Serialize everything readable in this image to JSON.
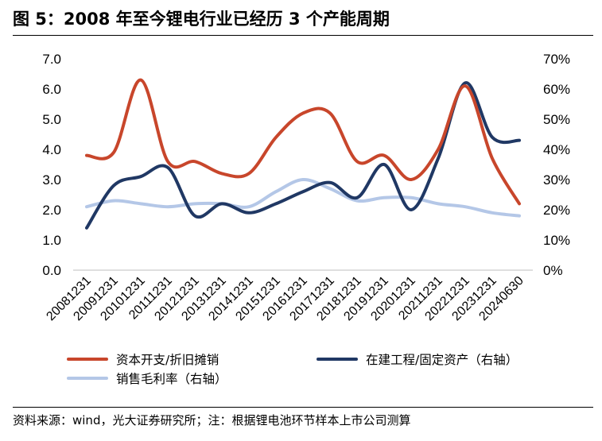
{
  "header": {
    "title": "图 5：2008 年至今锂电行业已经历 3 个产能周期"
  },
  "footer": {
    "source": "资料来源：wind，光大证券研究所；注：根据锂电池环节样本上市公司测算"
  },
  "chart_data": {
    "type": "line",
    "title": "图 5：2008 年至今锂电行业已经历 3 个产能周期",
    "categories": [
      "20081231",
      "20091231",
      "20101231",
      "20111231",
      "20121231",
      "20131231",
      "20141231",
      "20151231",
      "20161231",
      "20171231",
      "20181231",
      "20191231",
      "20201231",
      "20211231",
      "20221231",
      "20231231",
      "20240630"
    ],
    "left_axis": {
      "min": 0,
      "max": 7,
      "ticks": [
        "0.0",
        "1.0",
        "2.0",
        "3.0",
        "4.0",
        "5.0",
        "6.0",
        "7.0"
      ]
    },
    "right_axis": {
      "min": 0,
      "max": 0.7,
      "ticks": [
        "0%",
        "10%",
        "20%",
        "30%",
        "40%",
        "50%",
        "60%",
        "70%"
      ]
    },
    "grid": false,
    "legend_position": "bottom",
    "series": [
      {
        "name": "资本开支/折旧摊销",
        "axis": "left",
        "color": "#C8462B",
        "values": [
          3.8,
          3.9,
          6.3,
          3.6,
          3.6,
          3.2,
          3.2,
          4.4,
          5.2,
          5.2,
          3.6,
          3.8,
          3.0,
          4.0,
          6.1,
          3.7,
          2.2
        ]
      },
      {
        "name": "在建工程/固定资产（右轴）",
        "axis": "right",
        "color": "#203864",
        "values": [
          0.14,
          0.28,
          0.31,
          0.34,
          0.18,
          0.22,
          0.19,
          0.22,
          0.26,
          0.29,
          0.24,
          0.35,
          0.2,
          0.37,
          0.62,
          0.44,
          0.43
        ]
      },
      {
        "name": "销售毛利率（右轴）",
        "axis": "right",
        "color": "#B4C7E7",
        "values": [
          0.21,
          0.23,
          0.22,
          0.21,
          0.22,
          0.22,
          0.21,
          0.26,
          0.3,
          0.27,
          0.23,
          0.24,
          0.24,
          0.22,
          0.21,
          0.19,
          0.18
        ]
      }
    ]
  }
}
